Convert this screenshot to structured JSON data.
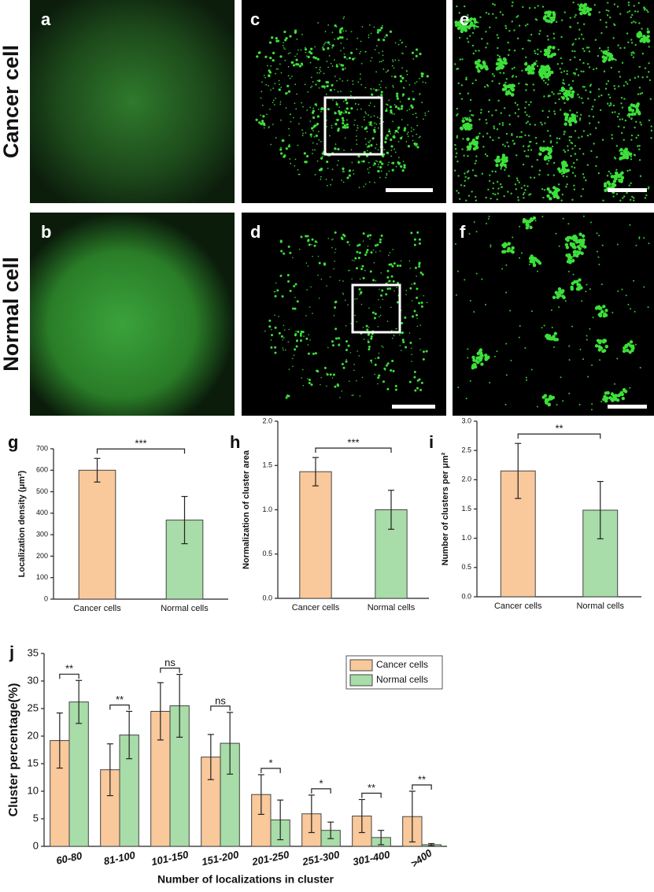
{
  "image_panels": {
    "row_labels": [
      "Cancer cell",
      "Normal cell"
    ],
    "labels": [
      "a",
      "c",
      "e",
      "b",
      "d",
      "f"
    ]
  },
  "chart_data": [
    {
      "type": "bar",
      "panel": "g",
      "ylabel": "Localization density (μm²)",
      "categories": [
        "Cancer cells",
        "Normal cells"
      ],
      "values": [
        600,
        368
      ],
      "errors": [
        55,
        110
      ],
      "colors": [
        "#f9c89b",
        "#a8dca8"
      ],
      "ylim": [
        0,
        700
      ],
      "yticks": [
        0,
        100,
        200,
        300,
        400,
        500,
        600,
        700
      ],
      "significance": "***"
    },
    {
      "type": "bar",
      "panel": "h",
      "ylabel": "Normalization of cluster area",
      "categories": [
        "Cancer cells",
        "Normal cells"
      ],
      "values": [
        1.43,
        1.0
      ],
      "errors": [
        0.16,
        0.22
      ],
      "colors": [
        "#f9c89b",
        "#a8dca8"
      ],
      "ylim": [
        0,
        2.0
      ],
      "yticks": [
        {
          "value": 0,
          "label": "0.0"
        },
        {
          "value": 0.5,
          "label": "0.5"
        },
        {
          "value": 1,
          "label": "1.0"
        },
        {
          "value": 1.5,
          "label": "1.5"
        },
        {
          "value": 2,
          "label": "2.0"
        }
      ],
      "significance": "***"
    },
    {
      "type": "bar",
      "panel": "i",
      "ylabel": "Number of clusters per μm²",
      "categories": [
        "Cancer cells",
        "Normal cells"
      ],
      "values": [
        2.15,
        1.48
      ],
      "errors": [
        0.47,
        0.49
      ],
      "colors": [
        "#f9c89b",
        "#a8dca8"
      ],
      "ylim": [
        0,
        3.0
      ],
      "yticks": [
        {
          "value": 0,
          "label": "0.0"
        },
        {
          "value": 0.5,
          "label": "0.5"
        },
        {
          "value": 1,
          "label": "1.0"
        },
        {
          "value": 1.5,
          "label": "1.5"
        },
        {
          "value": 2,
          "label": "2.0"
        },
        {
          "value": 2.5,
          "label": "2.5"
        },
        {
          "value": 3,
          "label": "3.0"
        }
      ],
      "significance": "**"
    },
    {
      "type": "grouped_bar",
      "panel": "j",
      "xlabel": "Number of localizations in cluster",
      "ylabel": "Cluster percentage(%)",
      "categories": [
        "60-80",
        "81-100",
        "101-150",
        "151-200",
        "201-250",
        "251-300",
        "301-400",
        ">400"
      ],
      "series": [
        {
          "name": "Cancer cells",
          "color": "#f9c89b",
          "values": [
            19.2,
            13.9,
            24.5,
            16.2,
            9.4,
            5.9,
            5.5,
            5.4
          ],
          "errors": [
            5.0,
            4.7,
            5.2,
            4.1,
            3.6,
            3.4,
            3.0,
            4.6
          ]
        },
        {
          "name": "Normal cells",
          "color": "#a8dca8",
          "values": [
            26.2,
            20.2,
            25.5,
            18.7,
            4.8,
            2.9,
            1.6,
            0.3
          ],
          "errors": [
            3.9,
            4.3,
            5.7,
            5.6,
            3.6,
            1.5,
            1.3,
            0.2
          ]
        }
      ],
      "ylim": [
        0,
        35
      ],
      "yticks": [
        0,
        5,
        10,
        15,
        20,
        25,
        30,
        35
      ],
      "significance": [
        "**",
        "**",
        "ns",
        "ns",
        "*",
        "*",
        "**",
        "**"
      ]
    }
  ]
}
